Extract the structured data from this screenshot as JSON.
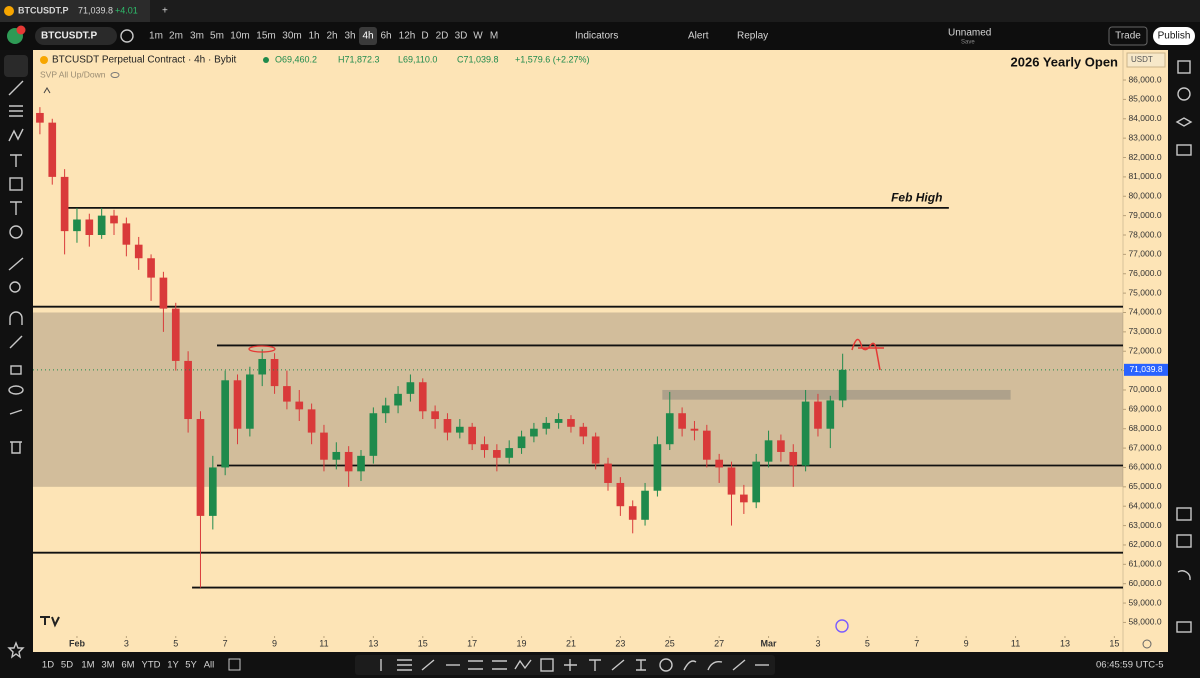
{
  "browser_tab": {
    "title": "BTCUSDT.P",
    "price": "71,039.8",
    "change": "+4.01"
  },
  "toolbar": {
    "symbol": "BTCUSDT.P",
    "intervals": [
      {
        "label": "1m"
      },
      {
        "label": "2m"
      },
      {
        "label": "3m"
      },
      {
        "label": "5m"
      },
      {
        "label": "10m"
      },
      {
        "label": "15m"
      },
      {
        "label": "30m"
      },
      {
        "label": "1h"
      },
      {
        "label": "2h"
      },
      {
        "label": "3h"
      },
      {
        "label": "4h",
        "active": true
      },
      {
        "label": "6h"
      },
      {
        "label": "12h"
      },
      {
        "label": "D"
      },
      {
        "label": "2D"
      },
      {
        "label": "3D"
      },
      {
        "label": "W"
      },
      {
        "label": "M"
      }
    ],
    "indicators": "Indicators",
    "alert": "Alert",
    "replay": "Replay",
    "layout_name": "Unnamed",
    "layout_status": "Save",
    "trade": "Trade",
    "publish": "Publish"
  },
  "chart_data": {
    "type": "candlestick",
    "symbol_title": "BTCUSDT Perpetual Contract · 4h · Bybit",
    "ohlc_legend": [
      "O69,460.2",
      "H71,872.3",
      "L69,110.0",
      "C71,039.8",
      "+1,579.6 (+2.27%)"
    ],
    "indicator": "SVP All Up/Down",
    "corner_note": "2026 Yearly Open",
    "currency": "USDT",
    "up_color": "#1f8a4c",
    "down_color": "#d93a3a",
    "x": [
      -1.5,
      -1,
      -0.5,
      0,
      0.5,
      1,
      1.5,
      2,
      2.5,
      3,
      3.5,
      4,
      4.5,
      5,
      5.5,
      6,
      6.5,
      7,
      7.5,
      8,
      8.5,
      9,
      9.5,
      10,
      10.5,
      11,
      11.5,
      12,
      12.5,
      13,
      13.5,
      14,
      14.5,
      15,
      15.5,
      16,
      16.5,
      17,
      17.5,
      18,
      18.5,
      19,
      19.5,
      20,
      20.5,
      21,
      21.5,
      22,
      22.5,
      23,
      23.5,
      24,
      24.5,
      25,
      25.5,
      26,
      26.5,
      27,
      27.5,
      28,
      28.5,
      29,
      29.5,
      30,
      30.5,
      31
    ],
    "open": [
      84300,
      83800,
      81000,
      78200,
      78800,
      78000,
      79000,
      78600,
      77500,
      76800,
      75800,
      74200,
      71500,
      68500,
      63500,
      66000,
      70500,
      68000,
      70800,
      71600,
      70200,
      69400,
      69000,
      67800,
      66400,
      66800,
      65800,
      66600,
      68800,
      69200,
      69800,
      70400,
      68900,
      68500,
      67800,
      68100,
      67200,
      66900,
      66500,
      67000,
      67600,
      68000,
      68300,
      68500,
      68100,
      67600,
      66200,
      65200,
      64000,
      63300,
      64800,
      67200,
      68800,
      68000,
      67900,
      66400,
      66000,
      64600,
      64200,
      66300,
      67400,
      66800,
      66100,
      69400,
      68000,
      69460.2
    ],
    "high": [
      84600,
      84000,
      81400,
      79400,
      79100,
      79400,
      79300,
      78900,
      77900,
      77000,
      76100,
      74500,
      72000,
      68900,
      66600,
      71000,
      70800,
      71200,
      72100,
      71900,
      71000,
      70000,
      69300,
      68200,
      67300,
      67100,
      66900,
      69100,
      69600,
      70200,
      70800,
      70600,
      69200,
      68800,
      68500,
      68300,
      67600,
      67200,
      67400,
      67900,
      68300,
      68600,
      68800,
      68700,
      68300,
      67800,
      66500,
      65500,
      64300,
      65200,
      67600,
      69900,
      69100,
      68400,
      68200,
      66700,
      66300,
      65100,
      66700,
      67900,
      67700,
      67200,
      70000,
      69800,
      69700,
      71872.3
    ],
    "low": [
      83200,
      80600,
      77000,
      77600,
      77400,
      77800,
      78000,
      76900,
      76200,
      74600,
      73000,
      71000,
      67800,
      59800,
      62800,
      65600,
      67200,
      67600,
      70200,
      69800,
      69000,
      68400,
      67200,
      65800,
      65900,
      65000,
      65300,
      66200,
      68300,
      68800,
      69400,
      68500,
      68000,
      67400,
      67500,
      66900,
      66500,
      65800,
      66200,
      66700,
      67300,
      67700,
      68000,
      67800,
      67200,
      65900,
      64800,
      63500,
      62600,
      63000,
      64500,
      66900,
      67600,
      67400,
      66000,
      65200,
      63000,
      63600,
      63900,
      66000,
      66300,
      65000,
      65800,
      67600,
      67000,
      69110.0
    ],
    "close": [
      83800,
      81000,
      78200,
      78800,
      78000,
      79000,
      78600,
      77500,
      76800,
      75800,
      74200,
      71500,
      68500,
      63500,
      66000,
      70500,
      68000,
      70800,
      71600,
      70200,
      69400,
      69000,
      67800,
      66400,
      66800,
      65800,
      66600,
      68800,
      69200,
      69800,
      70400,
      68900,
      68500,
      67800,
      68100,
      67200,
      66900,
      66500,
      67000,
      67600,
      68000,
      68300,
      68500,
      68100,
      67600,
      66200,
      65200,
      64000,
      63300,
      64800,
      67200,
      68800,
      68000,
      67900,
      66400,
      66000,
      64600,
      64200,
      66300,
      67400,
      66800,
      66100,
      69400,
      68000,
      69460.2,
      71039.8
    ],
    "last_price": {
      "value": 71039.8,
      "label": "71,039.8"
    },
    "xlim": [
      -1.78,
      42.35
    ],
    "xticks": [
      {
        "value": 0,
        "label": "Feb"
      },
      {
        "value": 2,
        "label": "3"
      },
      {
        "value": 4,
        "label": "5"
      },
      {
        "value": 6,
        "label": "7"
      },
      {
        "value": 8,
        "label": "9"
      },
      {
        "value": 10,
        "label": "11"
      },
      {
        "value": 12,
        "label": "13"
      },
      {
        "value": 14,
        "label": "15"
      },
      {
        "value": 16,
        "label": "17"
      },
      {
        "value": 18,
        "label": "19"
      },
      {
        "value": 20,
        "label": "21"
      },
      {
        "value": 22,
        "label": "23"
      },
      {
        "value": 24,
        "label": "25"
      },
      {
        "value": 26,
        "label": "27"
      },
      {
        "value": 28,
        "label": "Mar"
      },
      {
        "value": 30,
        "label": "3"
      },
      {
        "value": 32,
        "label": "5"
      },
      {
        "value": 34,
        "label": "7"
      },
      {
        "value": 36,
        "label": "9"
      },
      {
        "value": 38,
        "label": "11"
      },
      {
        "value": 40,
        "label": "13"
      },
      {
        "value": 42,
        "label": "15"
      }
    ],
    "ylim": [
      57300,
      87550
    ],
    "yticks": [
      {
        "value": 58000,
        "label": "58,000.0"
      },
      {
        "value": 59000,
        "label": "59,000.0"
      },
      {
        "value": 60000,
        "label": "60,000.0"
      },
      {
        "value": 61000,
        "label": "61,000.0"
      },
      {
        "value": 62000,
        "label": "62,000.0"
      },
      {
        "value": 63000,
        "label": "63,000.0"
      },
      {
        "value": 64000,
        "label": "64,000.0"
      },
      {
        "value": 65000,
        "label": "65,000.0"
      },
      {
        "value": 66000,
        "label": "66,000.0"
      },
      {
        "value": 67000,
        "label": "67,000.0"
      },
      {
        "value": 68000,
        "label": "68,000.0"
      },
      {
        "value": 69000,
        "label": "69,000.0"
      },
      {
        "value": 70000,
        "label": "70,000.0"
      },
      {
        "value": 71000,
        "label": "71,000.0"
      },
      {
        "value": 72000,
        "label": "72,000.0"
      },
      {
        "value": 73000,
        "label": "73,000.0"
      },
      {
        "value": 74000,
        "label": "74,000.0"
      },
      {
        "value": 75000,
        "label": "75,000.0"
      },
      {
        "value": 76000,
        "label": "76,000.0"
      },
      {
        "value": 77000,
        "label": "77,000.0"
      },
      {
        "value": 78000,
        "label": "78,000.0"
      },
      {
        "value": 79000,
        "label": "79,000.0"
      },
      {
        "value": 80000,
        "label": "80,000.0"
      },
      {
        "value": 81000,
        "label": "81,000.0"
      },
      {
        "value": 82000,
        "label": "82,000.0"
      },
      {
        "value": 83000,
        "label": "83,000.0"
      },
      {
        "value": 84000,
        "label": "84,000.0"
      },
      {
        "value": 85000,
        "label": "85,000.0"
      },
      {
        "value": 86000,
        "label": "86,000.0"
      }
    ],
    "zones": [
      {
        "low": 65000,
        "high": 74000,
        "x": [
          -1.78,
          42.35
        ],
        "color": "rgba(120,110,100,0.32)"
      },
      {
        "low": 69500,
        "high": 70000,
        "x": [
          23.7,
          37.8
        ],
        "color": "rgba(110,110,110,0.35)"
      }
    ],
    "levels": [
      {
        "price": 79400,
        "x": [
          -0.36,
          35.3
        ]
      },
      {
        "price": 74300,
        "x": [
          -1.78,
          42.35
        ]
      },
      {
        "price": 72300,
        "x": [
          5.67,
          42.35
        ]
      },
      {
        "price": 66100,
        "x": [
          5.67,
          42.35
        ]
      },
      {
        "price": 61600,
        "x": [
          -1.78,
          42.35
        ]
      },
      {
        "price": 59800,
        "x": [
          4.66,
          42.35
        ]
      }
    ],
    "annotations": [
      {
        "text": "Feb High",
        "x": 34.0,
        "y": 79900
      }
    ]
  },
  "timeframes": [
    "1D",
    "5D",
    "1M",
    "3M",
    "6M",
    "YTD",
    "1Y",
    "5Y",
    "All"
  ],
  "clock": "06:45:59 UTC-5"
}
